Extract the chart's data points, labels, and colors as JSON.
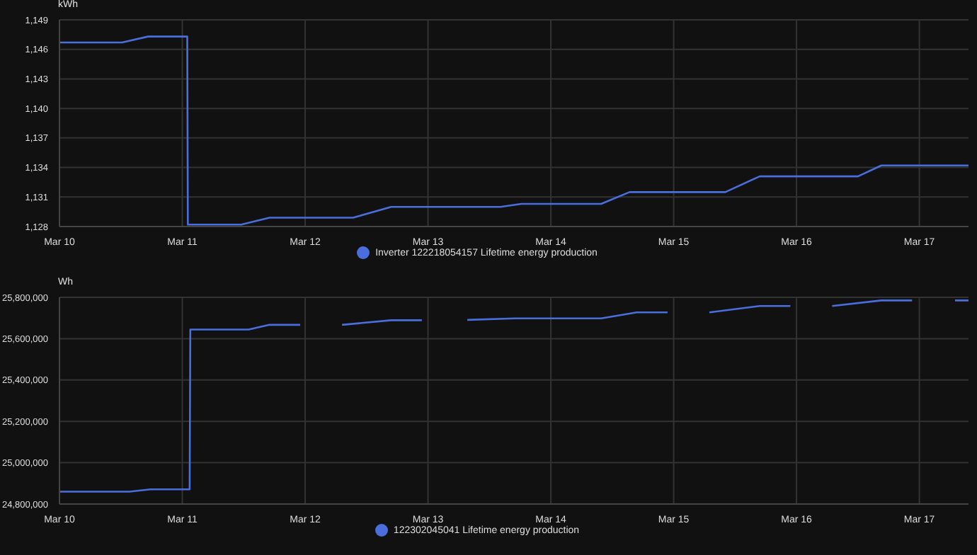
{
  "chart_data": [
    {
      "type": "line",
      "ylabel": "kWh",
      "legend": "bottom",
      "grid": true,
      "x": [
        "--03-10T00:00",
        "--03-10T12:14",
        "--03-10T17:17",
        "--03-11T00:58",
        "--03-11T01:05",
        "--03-11T11:31",
        "--03-11T17:02",
        "--03-12T09:22",
        "--03-12T16:48",
        "--03-13T14:10",
        "--03-13T18:14",
        "--03-14T09:50",
        "--03-14T15:22",
        "--03-15T10:05",
        "--03-15T16:48",
        "--03-16T12:00",
        "--03-16T16:34",
        "--03-17T09:36"
      ],
      "series": [
        {
          "name": "Inverter 122218054157 Lifetime energy production",
          "color": "#4a6fdc",
          "values": [
            1146.7,
            1146.7,
            1147.3,
            1147.3,
            1128.2,
            1128.2,
            1128.9,
            1128.9,
            1130.0,
            1130.0,
            1130.3,
            1130.3,
            1131.5,
            1131.5,
            1133.1,
            1133.1,
            1134.2,
            1134.2
          ]
        }
      ],
      "xlim": [
        "--03-10T00:00",
        "--03-17T09:36"
      ],
      "xticks": [
        {
          "value": "--03-10",
          "label": "Mar 10"
        },
        {
          "value": "--03-11",
          "label": "Mar 11"
        },
        {
          "value": "--03-12",
          "label": "Mar 12"
        },
        {
          "value": "--03-13",
          "label": "Mar 13"
        },
        {
          "value": "--03-14",
          "label": "Mar 14"
        },
        {
          "value": "--03-15",
          "label": "Mar 15"
        },
        {
          "value": "--03-16",
          "label": "Mar 16"
        },
        {
          "value": "--03-17",
          "label": "Mar 17"
        }
      ],
      "ylim": [
        1128,
        1149
      ],
      "yticks": [
        {
          "value": 1128,
          "label": "1,128"
        },
        {
          "value": 1131,
          "label": "1,131"
        },
        {
          "value": 1134,
          "label": "1,134"
        },
        {
          "value": 1137,
          "label": "1,137"
        },
        {
          "value": 1140,
          "label": "1,140"
        },
        {
          "value": 1143,
          "label": "1,143"
        },
        {
          "value": 1146,
          "label": "1,146"
        },
        {
          "value": 1149,
          "label": "1,149"
        }
      ]
    },
    {
      "type": "line",
      "ylabel": "Wh",
      "legend": "bottom",
      "grid": true,
      "x": [
        "--03-10T00:00",
        "--03-10T13:41",
        "--03-10T17:46",
        "--03-11T01:26",
        "--03-11T01:34",
        "--03-11T12:58",
        "--03-11T17:02",
        "--03-11T23:02",
        "--03-12T03:07",
        "--03-12T07:12",
        "--03-12T16:48",
        "--03-12T22:48",
        "--03-13T03:07",
        "--03-13T07:41",
        "--03-13T17:02",
        "--03-14T09:50",
        "--03-14T16:48",
        "--03-14T22:48",
        "--03-15T02:53",
        "--03-15T06:58",
        "--03-15T16:48",
        "--03-15T22:48",
        "--03-16T02:53",
        "--03-16T06:58",
        "--03-16T16:34",
        "--03-16T22:34",
        "--03-17T02:53",
        "--03-17T06:58",
        "--03-17T09:36"
      ],
      "series": [
        {
          "name": "122302045041 Lifetime energy production",
          "color": "#4a6fdc",
          "values": [
            24860000,
            24860000,
            24871000,
            24871000,
            25644000,
            25644000,
            25667000,
            25667000,
            null,
            25667000,
            25689000,
            25689000,
            null,
            25691000,
            25698000,
            25698000,
            25727000,
            25727000,
            null,
            25727000,
            25758000,
            25758000,
            null,
            25758000,
            25785000,
            25785000,
            null,
            25785000,
            25785000
          ]
        }
      ],
      "xlim": [
        "--03-10T00:00",
        "--03-17T09:36"
      ],
      "xticks": [
        {
          "value": "--03-10",
          "label": "Mar 10"
        },
        {
          "value": "--03-11",
          "label": "Mar 11"
        },
        {
          "value": "--03-12",
          "label": "Mar 12"
        },
        {
          "value": "--03-13",
          "label": "Mar 13"
        },
        {
          "value": "--03-14",
          "label": "Mar 14"
        },
        {
          "value": "--03-15",
          "label": "Mar 15"
        },
        {
          "value": "--03-16",
          "label": "Mar 16"
        },
        {
          "value": "--03-17",
          "label": "Mar 17"
        }
      ],
      "ylim": [
        24800000,
        25800000
      ],
      "yticks": [
        {
          "value": 24800000,
          "label": "24,800,000"
        },
        {
          "value": 25000000,
          "label": "25,000,000"
        },
        {
          "value": 25200000,
          "label": "25,200,000"
        },
        {
          "value": 25400000,
          "label": "25,400,000"
        },
        {
          "value": 25600000,
          "label": "25,600,000"
        },
        {
          "value": 25800000,
          "label": "25,800,000"
        }
      ]
    }
  ]
}
